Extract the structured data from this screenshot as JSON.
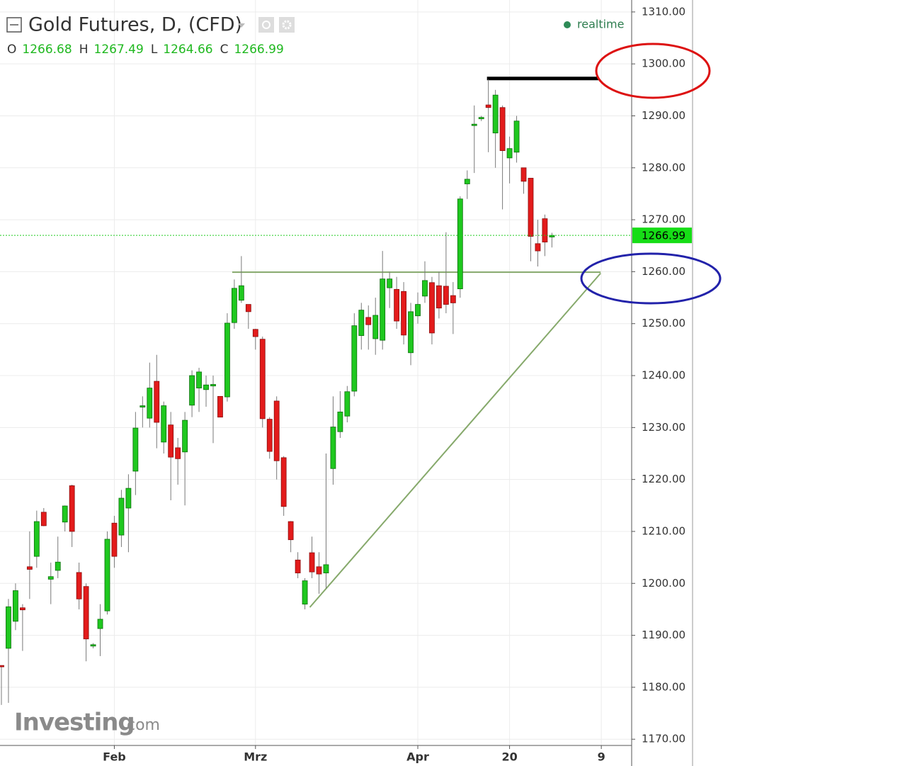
{
  "chart_data": {
    "type": "candlestick",
    "title": "Gold Futures, D, (CFD)",
    "status": "realtime",
    "logo": "Investing",
    "logo_suffix": ".com",
    "ohlc_labels": [
      "O",
      "H",
      "L",
      "C"
    ],
    "up_color": "#1fc81f",
    "down_color": "#e31b1b",
    "grid": true,
    "xlim": [
      -0.2,
      89.3
    ],
    "xticks": [
      {
        "value": 16,
        "label": "Feb"
      },
      {
        "value": 36,
        "label": "Mrz"
      },
      {
        "value": 59,
        "label": "Apr"
      },
      {
        "value": 72,
        "label": "20"
      },
      {
        "value": 85,
        "label": "9"
      }
    ],
    "ylim": [
      1168.8,
      1312.3
    ],
    "yticks": [
      {
        "value": 1310,
        "label": "1310.00"
      },
      {
        "value": 1300,
        "label": "1300.00"
      },
      {
        "value": 1290,
        "label": "1290.00"
      },
      {
        "value": 1280,
        "label": "1280.00"
      },
      {
        "value": 1270,
        "label": "1270.00"
      },
      {
        "value": 1260,
        "label": "1260.00"
      },
      {
        "value": 1250,
        "label": "1250.00"
      },
      {
        "value": 1240,
        "label": "1240.00"
      },
      {
        "value": 1230,
        "label": "1230.00"
      },
      {
        "value": 1220,
        "label": "1220.00"
      },
      {
        "value": 1210,
        "label": "1210.00"
      },
      {
        "value": 1200,
        "label": "1200.00"
      },
      {
        "value": 1190,
        "label": "1190.00"
      },
      {
        "value": 1180,
        "label": "1180.00"
      },
      {
        "value": 1170,
        "label": "1170.00"
      }
    ],
    "open": [
      1184.2,
      1187.5,
      1192.7,
      1195.3,
      1203.2,
      1205.2,
      1213.7,
      1200.8,
      1202.5,
      1211.8,
      1218.8,
      1202.1,
      1199.4,
      1188,
      1191.3,
      1194.7,
      1211.6,
      1209.3,
      1214.5,
      1221.6,
      1234,
      1231.8,
      1238.9,
      1227.2,
      1230.5,
      1226.1,
      1225.3,
      1234.3,
      1237.6,
      1237.3,
      1238,
      1236,
      1235.9,
      1250.2,
      1254.5,
      1253.7,
      1248.9,
      1247,
      1231.6,
      1235.1,
      1224.2,
      1211.9,
      1204.5,
      1196,
      1205.9,
      1203.2,
      1202,
      1222.1,
      1229.2,
      1232.2,
      1237,
      1247.7,
      1251.2,
      1247.1,
      1246.8,
      1256.9,
      1256.6,
      1256.2,
      1244.4,
      1251.5,
      1255.3,
      1257.9,
      1257.3,
      1257.2,
      1255.4,
      1256.7,
      1276.9,
      1288.2,
      1289.5,
      1292.1,
      1286.7,
      1291.6,
      1281.9,
      1283,
      1280,
      1278,
      1265.4,
      1270.2,
      1266.68
    ],
    "high": [
      1184.2,
      1197,
      1200,
      1196,
      1210,
      1214,
      1214.5,
      1204,
      1209,
      1215,
      1219,
      1204,
      1200,
      1188.5,
      1196,
      1210,
      1213,
      1218,
      1221,
      1233,
      1236,
      1242.5,
      1244,
      1235,
      1233,
      1228,
      1233,
      1241,
      1241.5,
      1240,
      1240,
      1236,
      1252,
      1258.5,
      1263,
      1253.7,
      1249,
      1247.5,
      1232,
      1236,
      1224.5,
      1212,
      1206,
      1201,
      1209,
      1206,
      1225,
      1236,
      1237,
      1238,
      1252,
      1254,
      1253.5,
      1255,
      1264,
      1260,
      1259,
      1258,
      1254,
      1256,
      1262,
      1259,
      1260,
      1267.6,
      1258,
      1274.5,
      1279.5,
      1292,
      1290,
      1297,
      1295,
      1292,
      1286,
      1290,
      1280,
      1278,
      1270,
      1271,
      1267.49
    ],
    "low": [
      1176.6,
      1177,
      1191,
      1187,
      1197,
      1203,
      1211,
      1196,
      1201,
      1210,
      1207,
      1195,
      1185,
      1187.5,
      1186,
      1194,
      1203,
      1207,
      1206,
      1217,
      1230,
      1230,
      1226,
      1225,
      1216,
      1219,
      1215,
      1232,
      1233,
      1234,
      1227,
      1232,
      1235,
      1249,
      1254,
      1249,
      1245,
      1230,
      1224,
      1220,
      1213,
      1206,
      1201,
      1195,
      1201,
      1198,
      1199,
      1219,
      1228,
      1231,
      1236,
      1245,
      1245,
      1244,
      1245,
      1253,
      1249,
      1246,
      1242,
      1250,
      1254,
      1246,
      1251,
      1252,
      1248,
      1255,
      1274,
      1279,
      1289,
      1283,
      1280,
      1272,
      1277,
      1281,
      1275,
      1262,
      1261,
      1263,
      1264.66
    ],
    "close": [
      1184,
      1195.5,
      1198.6,
      1194.9,
      1202.7,
      1211.9,
      1211.1,
      1201.3,
      1204.1,
      1214.9,
      1210,
      1197,
      1189.3,
      1188.2,
      1193.1,
      1208.5,
      1205.2,
      1216.4,
      1218.3,
      1229.9,
      1234.2,
      1237.6,
      1231,
      1234.2,
      1224.3,
      1224,
      1231.4,
      1240,
      1240.7,
      1238.2,
      1238.3,
      1232,
      1250.1,
      1256.8,
      1257.3,
      1252.3,
      1247.5,
      1231.7,
      1225.4,
      1223.6,
      1214.8,
      1208.4,
      1202,
      1200.5,
      1202.2,
      1201.8,
      1203.6,
      1230.1,
      1233,
      1236.9,
      1249.6,
      1252.6,
      1249.8,
      1251.6,
      1258.6,
      1258.6,
      1250.5,
      1247.8,
      1252.3,
      1253.7,
      1258.3,
      1248.2,
      1253,
      1253.7,
      1254,
      1274,
      1277.8,
      1288.4,
      1289.7,
      1291.6,
      1294,
      1283.3,
      1283.7,
      1289,
      1277.4,
      1266.8,
      1264,
      1265.7,
      1266.99
    ],
    "drawings": [
      {
        "color": "#000000",
        "from": [
          68.8,
          1297.2
        ],
        "to": [
          84.6,
          1297.2
        ]
      },
      {
        "color": "#86a96b",
        "from": [
          32.7,
          1259.9
        ],
        "to": [
          84.9,
          1259.9
        ]
      },
      {
        "color": "#86a96b",
        "from": [
          43.7,
          1195.4
        ],
        "to": [
          84.9,
          1259.7
        ]
      }
    ]
  }
}
